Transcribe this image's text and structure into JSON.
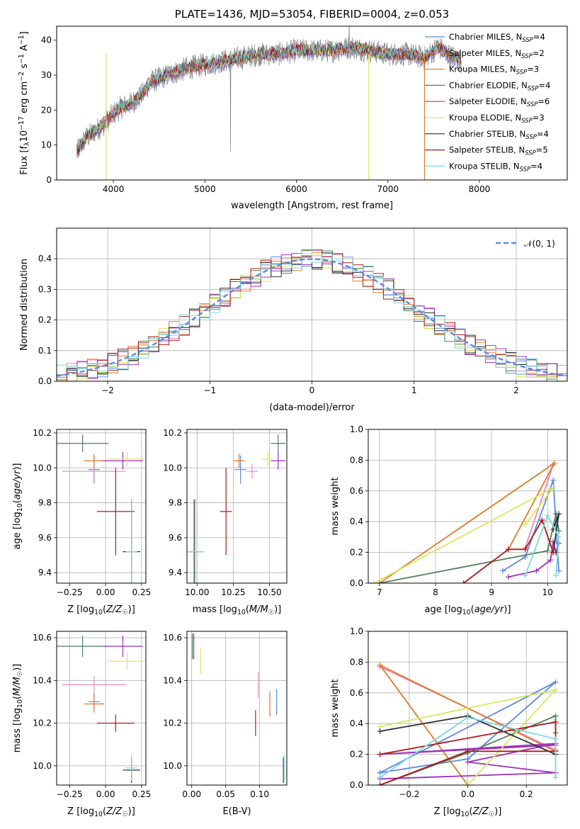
{
  "colors": {
    "Chabrier MILES": "#5b8be0",
    "Salpeter MILES": "#e88ac0",
    "Kroupa MILES": "#e07b2a",
    "Chabrier ELODIE": "#4f7f5a",
    "Salpeter ELODIE": "#9b30b8",
    "Kroupa ELODIE": "#d8e85a",
    "Chabrier STELIB": "#303030",
    "Salpeter STELIB": "#b01818",
    "Kroupa STELIB": "#78d8e0",
    "data": "#808080",
    "normal": "#5b8be0"
  },
  "chart_data": [
    {
      "id": "spectrum",
      "type": "line",
      "title": "PLATE=1436, MJD=53054, FIBERID=0004, z=0.053",
      "xlabel": "wavelength [Angstrom, rest frame]",
      "ylabel": "Flux [f_λ 10^-17 erg cm^-2 s^-1 A^-1]",
      "xlim": [
        3380,
        8960
      ],
      "ylim": [
        0,
        44
      ],
      "xticks": [
        4000,
        5000,
        6000,
        7000,
        8000
      ],
      "yticks": [
        0,
        10,
        20,
        30,
        40
      ],
      "legend_position": "top-right",
      "spectrum_x": [
        3600,
        3700,
        3800,
        3900,
        4000,
        4100,
        4200,
        4300,
        4400,
        4500,
        4600,
        4800,
        5000,
        5200,
        5400,
        5600,
        5800,
        6000,
        6200,
        6400,
        6600,
        6800,
        7000,
        7200,
        7400,
        7550,
        7650,
        7800
      ],
      "spectrum_y": [
        8,
        12,
        14,
        16,
        19,
        21,
        22,
        24,
        28,
        29,
        30,
        32,
        33,
        34,
        35,
        36,
        36,
        37,
        37,
        37,
        38,
        37,
        36,
        36,
        35,
        38,
        36,
        34
      ],
      "legend": [
        {
          "label": "Chabrier MILES",
          "nssp": "4"
        },
        {
          "label": "Salpeter MILES",
          "nssp": "2"
        },
        {
          "label": "Kroupa MILES",
          "nssp": "3"
        },
        {
          "label": "Chabrier ELODIE",
          "nssp": "4"
        },
        {
          "label": "Salpeter ELODIE",
          "nssp": "6"
        },
        {
          "label": "Kroupa ELODIE",
          "nssp": "3"
        },
        {
          "label": "Chabrier STELIB",
          "nssp": "4"
        },
        {
          "label": "Salpeter STELIB",
          "nssp": "5"
        },
        {
          "label": "Kroupa STELIB",
          "nssp": "4"
        }
      ]
    },
    {
      "id": "residuals",
      "type": "line",
      "xlabel": "(data-model)/error",
      "ylabel": "Normed distribution",
      "xlim": [
        -2.5,
        2.5
      ],
      "ylim": [
        0,
        0.5
      ],
      "xticks": [
        -2,
        -1,
        0,
        1,
        2
      ],
      "yticks": [
        0.0,
        0.1,
        0.2,
        0.3,
        0.4
      ],
      "grid": true,
      "legend_position": "top-right",
      "normal_label": "𝒩(0, 1)",
      "bin_width": 0.1
    },
    {
      "id": "age_vs_Z",
      "type": "scatter",
      "xlabel": "Z [log10(Z/Z☉)]",
      "ylabel": "age  [log10(age/yr)]",
      "xlim": [
        -0.34,
        0.28
      ],
      "ylim": [
        9.34,
        10.22
      ],
      "xticks": [
        -0.25,
        0.0,
        0.25
      ],
      "yticks": [
        9.4,
        9.6,
        9.8,
        10.0,
        10.2
      ],
      "grid": true
    },
    {
      "id": "age_vs_mass",
      "type": "scatter",
      "xlabel": "mass [log10(M/M☉)]",
      "xlim": [
        9.93,
        10.62
      ],
      "ylim": [
        9.34,
        10.22
      ],
      "xticks": [
        10.0,
        10.25,
        10.5
      ],
      "yticks": [
        9.4,
        9.6,
        9.8,
        10.0,
        10.2
      ],
      "grid": true
    },
    {
      "id": "mass_weight_vs_age",
      "type": "line",
      "xlabel": "age  [log10(age/yr)]",
      "ylabel": "mass weight",
      "xlim": [
        6.8,
        10.35
      ],
      "ylim": [
        0,
        1
      ],
      "xticks": [
        7,
        8,
        9,
        10
      ],
      "yticks": [
        0.0,
        0.2,
        0.4,
        0.6,
        0.8,
        1.0
      ],
      "grid": true
    },
    {
      "id": "mass_vs_Z",
      "type": "scatter",
      "xlabel": "Z [log10(Z/Z☉)]",
      "ylabel": "mass [log10(M/M☉)]",
      "xlim": [
        -0.34,
        0.28
      ],
      "ylim": [
        9.91,
        10.63
      ],
      "xticks": [
        -0.25,
        0.0,
        0.25
      ],
      "yticks": [
        10.0,
        10.2,
        10.4,
        10.6
      ],
      "grid": true
    },
    {
      "id": "mass_vs_ebv",
      "type": "scatter",
      "xlabel": "E(B-V)",
      "xlim": [
        -0.007,
        0.14
      ],
      "ylim": [
        9.91,
        10.63
      ],
      "xticks": [
        0.0,
        0.05,
        0.1
      ],
      "yticks": [
        10.0,
        10.2,
        10.4,
        10.6
      ],
      "grid": true
    },
    {
      "id": "mass_weight_vs_Z",
      "type": "line",
      "xlabel": "Z [log10(Z/Z☉)]",
      "ylabel": "mass weight",
      "xlim": [
        -0.34,
        0.34
      ],
      "ylim": [
        0,
        1
      ],
      "xticks": [
        -0.2,
        0.0,
        0.2
      ],
      "yticks": [
        0.0,
        0.2,
        0.4,
        0.6,
        0.8,
        1.0
      ],
      "grid": true
    }
  ],
  "fits": [
    {
      "model": "Chabrier MILES",
      "Z": -0.08,
      "Zerr": 0.04,
      "age": 9.99,
      "ageerr": 0.08,
      "mass": 10.3,
      "masserr": 0.04,
      "ebv": 0.125,
      "ebverr": 0.015
    },
    {
      "model": "Salpeter MILES",
      "Z": -0.08,
      "Zerr": 0.22,
      "age": 9.98,
      "ageerr": 0.04,
      "mass": 10.38,
      "masserr": 0.04,
      "ebv": 0.098,
      "ebverr": 0.02
    },
    {
      "model": "Kroupa MILES",
      "Z": -0.08,
      "Zerr": 0.07,
      "age": 10.04,
      "ageerr": 0.04,
      "mass": 10.29,
      "masserr": 0.04,
      "ebv": 0.115,
      "ebverr": 0.02
    },
    {
      "model": "Chabrier ELODIE",
      "Z": -0.16,
      "Zerr": 0.18,
      "age": 10.14,
      "ageerr": 0.05,
      "mass": 10.56,
      "masserr": 0.05,
      "ebv": 0.001,
      "ebverr": 0.015
    },
    {
      "model": "Salpeter ELODIE",
      "Z": 0.12,
      "Zerr": 0.14,
      "age": 10.04,
      "ageerr": 0.05,
      "mass": 10.56,
      "masserr": 0.05,
      "ebv": 0.003,
      "ebverr": 0.015
    },
    {
      "model": "Kroupa ELODIE",
      "Z": 0.15,
      "Zerr": 0.14,
      "age": 10.05,
      "ageerr": 0.04,
      "mass": 10.49,
      "masserr": 0.04,
      "ebv": 0.013,
      "ebverr": 0.015
    },
    {
      "model": "Chabrier STELIB",
      "Z": 0.18,
      "Zerr": 0.06,
      "age": 9.52,
      "ageerr": 0.3,
      "mass": 9.98,
      "masserr": 0.06,
      "ebv": 0.135,
      "ebverr": 0.01
    },
    {
      "model": "Salpeter STELIB",
      "Z": 0.07,
      "Zerr": 0.13,
      "age": 9.75,
      "ageerr": 0.25,
      "mass": 10.2,
      "masserr": 0.04,
      "ebv": 0.094,
      "ebverr": 0.015
    },
    {
      "model": "Kroupa STELIB",
      "Z": 0.18,
      "Zerr": 0.04,
      "age": 9.52,
      "ageerr": 0.3,
      "mass": 9.99,
      "masserr": 0.06,
      "ebv": 0.136,
      "ebverr": 0.01
    }
  ],
  "mass_weights": [
    {
      "model": "Chabrier MILES",
      "age": [
        9.2,
        9.6,
        10.1,
        10.2
      ],
      "Z": [
        -0.3,
        0.0,
        0.3,
        -0.3
      ],
      "w": [
        0.08,
        0.17,
        0.67,
        0.08
      ]
    },
    {
      "model": "Salpeter MILES",
      "age": [
        10.1,
        9.6
      ],
      "Z": [
        -0.3,
        0.3
      ],
      "w": [
        0.77,
        0.23
      ]
    },
    {
      "model": "Kroupa MILES",
      "age": [
        9.3,
        10.12,
        7.0
      ],
      "Z": [
        0.3,
        -0.3,
        0.0
      ],
      "w": [
        0.22,
        0.78,
        0.0
      ]
    },
    {
      "model": "Chabrier ELODIE",
      "age": [
        7.0,
        10.0,
        10.15,
        10.2
      ],
      "Z": [
        -0.3,
        0.0,
        0.3,
        0.3
      ],
      "w": [
        0.0,
        0.21,
        0.45,
        0.34
      ]
    },
    {
      "model": "Salpeter ELODIE",
      "age": [
        9.3,
        9.8,
        10.05,
        10.1,
        10.15,
        10.2
      ],
      "Z": [
        -0.3,
        0.3,
        0.0,
        0.3,
        -0.3,
        0.3
      ],
      "w": [
        0.04,
        0.08,
        0.15,
        0.27,
        0.2,
        0.26
      ]
    },
    {
      "model": "Kroupa ELODIE",
      "age": [
        6.9,
        10.1,
        9.6
      ],
      "Z": [
        0.0,
        0.3,
        -0.3
      ],
      "w": [
        0.0,
        0.62,
        0.38
      ]
    },
    {
      "model": "Chabrier STELIB",
      "age": [
        10.1,
        10.2,
        10.1,
        10.15
      ],
      "Z": [
        -0.3,
        0.0,
        0.3,
        0.3
      ],
      "w": [
        0.35,
        0.45,
        0.2,
        0.2
      ]
    },
    {
      "model": "Salpeter STELIB",
      "age": [
        8.5,
        9.3,
        9.6,
        9.9,
        10.1
      ],
      "Z": [
        -0.3,
        0.0,
        0.3,
        0.3,
        -0.3
      ],
      "w": [
        0.0,
        0.22,
        0.22,
        0.41,
        0.2
      ]
    },
    {
      "model": "Kroupa STELIB",
      "age": [
        9.6,
        10.0,
        10.2,
        10.15
      ],
      "Z": [
        -0.3,
        0.0,
        0.3,
        0.3
      ],
      "w": [
        0.05,
        0.44,
        0.3,
        0.05
      ]
    }
  ]
}
